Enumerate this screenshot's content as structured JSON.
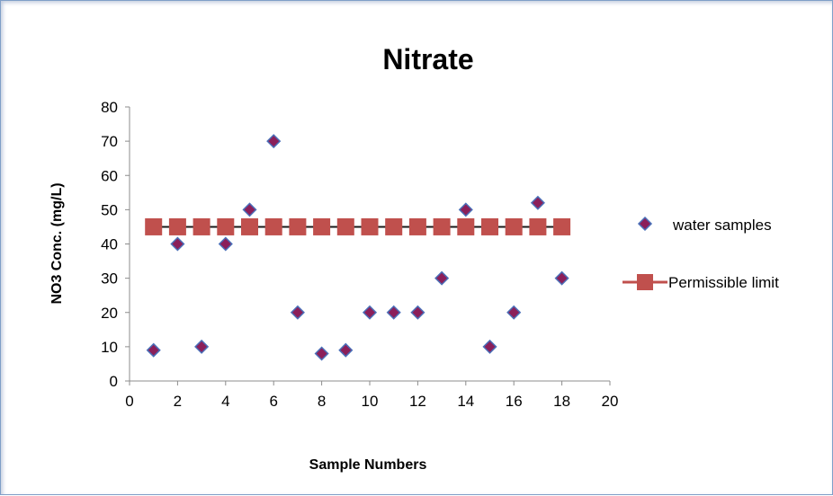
{
  "chart_data": {
    "type": "scatter",
    "title": "Nitrate",
    "xlabel": "Sample Numbers",
    "ylabel": "NO3 Conc. (mg/L)",
    "xlim": [
      0,
      20
    ],
    "ylim": [
      0,
      80
    ],
    "x_ticks": [
      0,
      2,
      4,
      6,
      8,
      10,
      12,
      14,
      16,
      18,
      20
    ],
    "y_ticks": [
      0,
      10,
      20,
      30,
      40,
      50,
      60,
      70,
      80
    ],
    "grid": false,
    "legend_position": "right",
    "series": [
      {
        "name": "water samples",
        "marker": "diamond",
        "color": "#8b1f5a",
        "edge_color": "#4a6fb8",
        "x": [
          1,
          2,
          3,
          4,
          5,
          6,
          7,
          8,
          9,
          10,
          11,
          12,
          13,
          14,
          15,
          16,
          17,
          18
        ],
        "y": [
          9,
          40,
          10,
          40,
          50,
          70,
          20,
          8,
          9,
          20,
          20,
          20,
          30,
          50,
          10,
          20,
          52,
          30
        ]
      },
      {
        "name": "Permissible limit",
        "marker": "square",
        "color": "#c0504d",
        "line_color": "#1a1a1a",
        "x": [
          1,
          2,
          3,
          4,
          5,
          6,
          7,
          8,
          9,
          10,
          11,
          12,
          13,
          14,
          15,
          16,
          17,
          18
        ],
        "y": [
          45,
          45,
          45,
          45,
          45,
          45,
          45,
          45,
          45,
          45,
          45,
          45,
          45,
          45,
          45,
          45,
          45,
          45
        ]
      }
    ]
  }
}
